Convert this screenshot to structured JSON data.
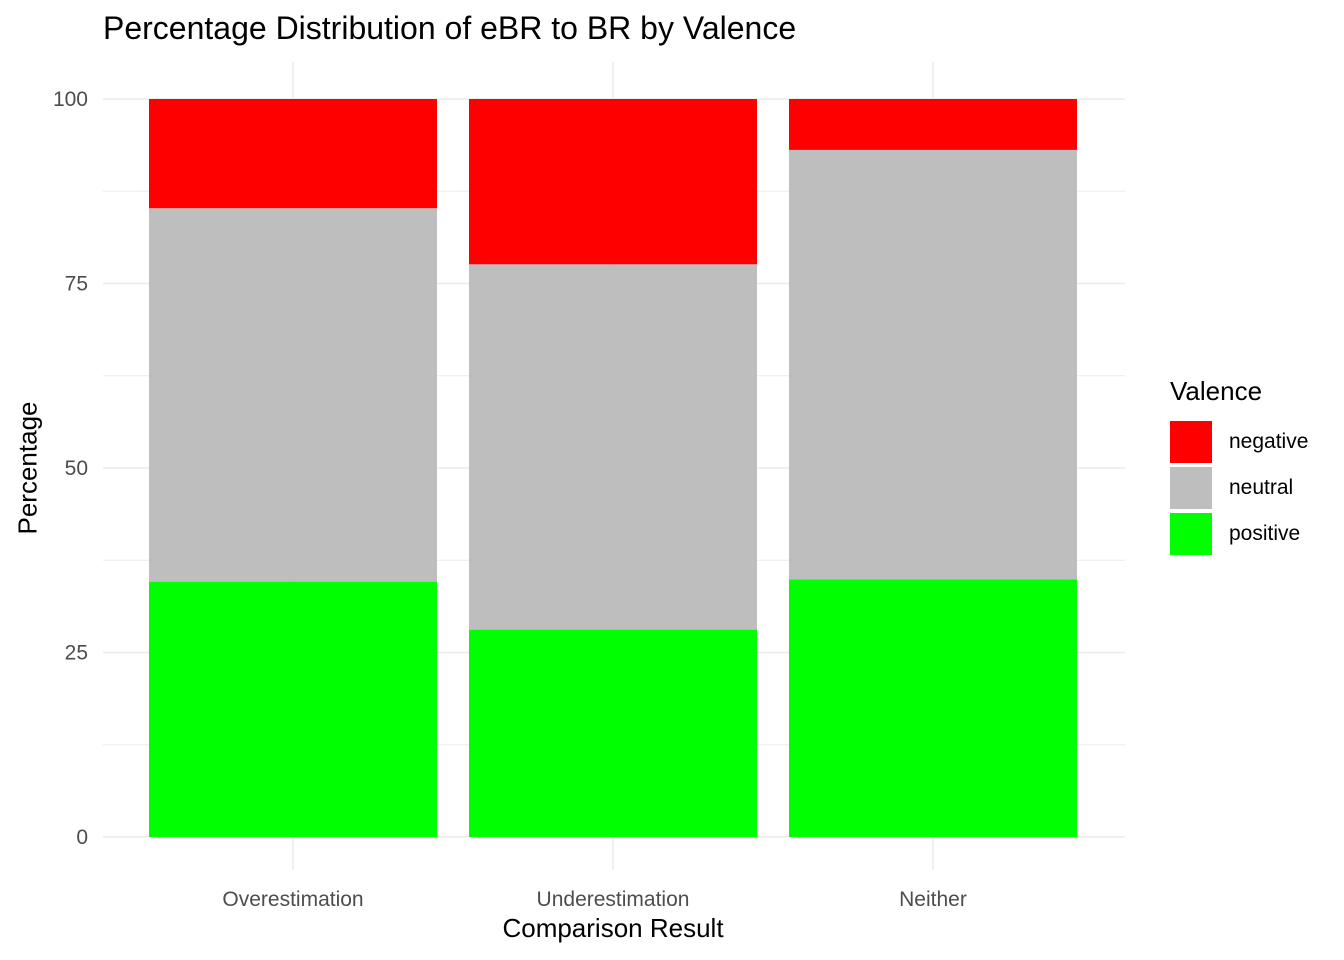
{
  "chart_data": {
    "type": "bar",
    "stacked": true,
    "title": "Percentage Distribution of eBR to BR by Valence",
    "xlabel": "Comparison Result",
    "ylabel": "Percentage",
    "categories": [
      "Overestimation",
      "Underestimation",
      "Neither"
    ],
    "ylim": [
      0,
      100
    ],
    "yticks": [
      0,
      25,
      50,
      75,
      100
    ],
    "grid": true,
    "legend": {
      "title": "Valence",
      "position": "right"
    },
    "series": [
      {
        "name": "positive",
        "color": "#00FF00",
        "values": [
          34.6,
          28.1,
          34.9
        ]
      },
      {
        "name": "neutral",
        "color": "#BEBEBE",
        "values": [
          50.6,
          49.5,
          58.2
        ]
      },
      {
        "name": "negative",
        "color": "#FF0000",
        "values": [
          14.8,
          22.4,
          6.9
        ]
      }
    ]
  }
}
